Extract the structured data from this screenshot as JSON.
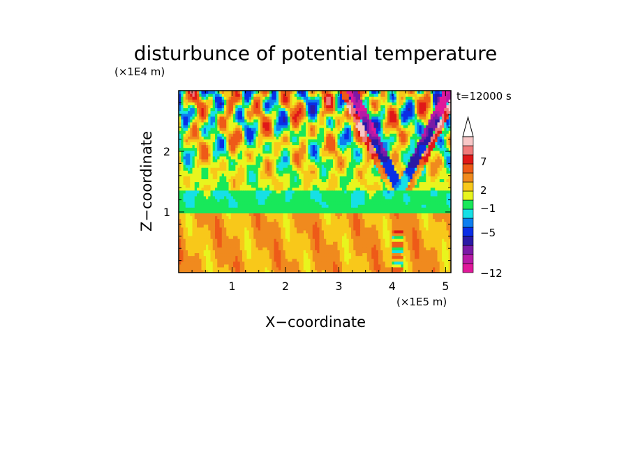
{
  "chart_data": {
    "type": "heatmap",
    "title": "disturbunce of potential temperature",
    "time_label": "t=12000 s",
    "xlabel": "X−coordinate",
    "ylabel": "Z−coordinate",
    "x_unit": "(×1E5 m)",
    "y_unit": "(×1E4 m)",
    "xlim": [
      0,
      5.1
    ],
    "ylim": [
      0,
      3.0
    ],
    "x_ticks": [
      "1",
      "2",
      "3",
      "4",
      "5"
    ],
    "y_ticks": [
      "1",
      "2"
    ],
    "colorbar": {
      "labels": [
        "7",
        "2",
        "−1",
        "−5",
        "−12"
      ],
      "levels": [
        -12,
        -5,
        -1,
        2,
        7
      ],
      "colors": [
        "#e0189a",
        "#b81aa6",
        "#7a1aa6",
        "#2a1aa6",
        "#0a2ee6",
        "#0d7ef0",
        "#16e0e6",
        "#18e85a",
        "#e8f51e",
        "#f8c81a",
        "#f08a1e",
        "#ee5a18",
        "#e01818",
        "#f07a7a",
        "#f8c8c8"
      ],
      "extend": "max"
    }
  }
}
